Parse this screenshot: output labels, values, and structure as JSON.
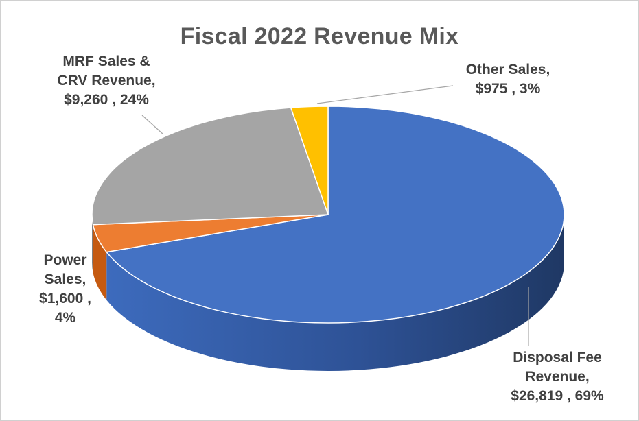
{
  "chart_data": {
    "type": "pie",
    "title": "Fiscal 2022 Revenue Mix",
    "slices": [
      {
        "label": "Disposal Fee Revenue",
        "value": 26819,
        "percent": 69,
        "color": "#4472C4",
        "side_color": "#2F5597",
        "label_lines": [
          "Disposal Fee",
          "Revenue,",
          "$26,819 , 69%"
        ]
      },
      {
        "label": "Power Sales",
        "value": 1600,
        "percent": 4,
        "color": "#ED7D31",
        "side_color": "#C55A11",
        "label_lines": [
          "Power",
          "Sales,",
          "$1,600 ,",
          "4%"
        ]
      },
      {
        "label": "MRF Sales & CRV Revenue",
        "value": 9260,
        "percent": 24,
        "color": "#A5A5A5",
        "side_color": "#7F7F7F",
        "label_lines": [
          "MRF Sales &",
          "CRV Revenue,",
          "$9,260 , 24%"
        ]
      },
      {
        "label": "Other Sales",
        "value": 975,
        "percent": 3,
        "color": "#FFC000",
        "side_color": "#BF9000",
        "label_lines": [
          "Other Sales,",
          "$975 , 3%"
        ]
      }
    ],
    "legend": "none",
    "style": "3d-pie"
  }
}
